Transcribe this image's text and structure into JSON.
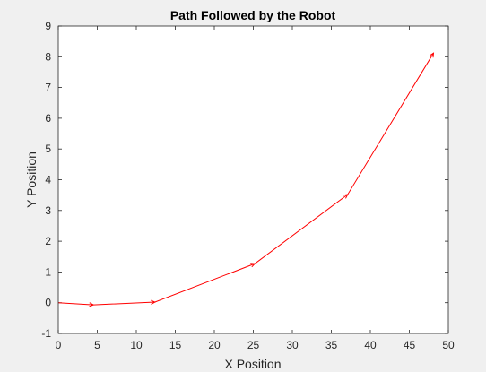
{
  "chart_data": {
    "type": "line",
    "title": "Path Followed by the Robot",
    "xlabel": "X Position",
    "ylabel": "Y Position",
    "xlim": [
      0,
      50
    ],
    "ylim": [
      -1,
      9
    ],
    "xticks": [
      "0",
      "5",
      "10",
      "15",
      "20",
      "25",
      "30",
      "35",
      "40",
      "45",
      "50"
    ],
    "yticks": [
      "-1",
      "0",
      "1",
      "2",
      "3",
      "4",
      "5",
      "6",
      "7",
      "8",
      "9"
    ],
    "grid": false,
    "series": [
      {
        "color": "#ff0000",
        "x": [
          0,
          4.5,
          12.4,
          25.2,
          37.1,
          48.1
        ],
        "y": [
          0,
          -0.07,
          0.02,
          1.27,
          3.52,
          8.12
        ]
      }
    ],
    "arrow_color": "#ff0000"
  }
}
